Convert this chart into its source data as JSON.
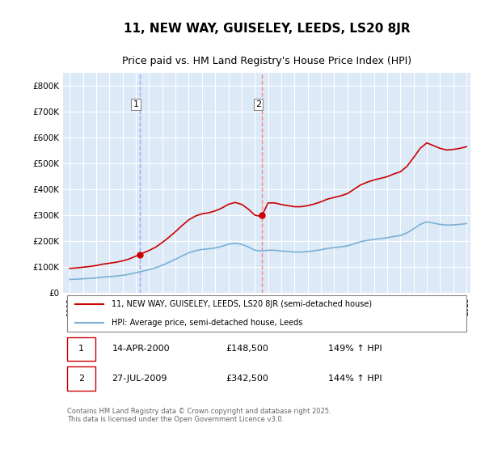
{
  "title": "11, NEW WAY, GUISELEY, LEEDS, LS20 8JR",
  "subtitle": "Price paid vs. HM Land Registry's House Price Index (HPI)",
  "title_fontsize": 11,
  "subtitle_fontsize": 9,
  "background_color": "#ffffff",
  "plot_bg_color": "#dce9f7",
  "ylabel": "",
  "ylim": [
    0,
    850000
  ],
  "yticks": [
    0,
    100000,
    200000,
    300000,
    400000,
    500000,
    600000,
    700000,
    800000
  ],
  "ytick_labels": [
    "£0",
    "£100K",
    "£200K",
    "£300K",
    "£400K",
    "£500K",
    "£600K",
    "£700K",
    "£800K"
  ],
  "grid_color": "#ffffff",
  "marker1_date_idx": 5,
  "marker1_label": "1",
  "marker1_date": "14-APR-2000",
  "marker1_price": 148500,
  "marker1_pct": "149% ↑ HPI",
  "marker2_label": "2",
  "marker2_date": "27-JUL-2009",
  "marker2_price": 342500,
  "marker2_pct": "144% ↑ HPI",
  "legend_line1": "11, NEW WAY, GUISELEY, LEEDS, LS20 8JR (semi-detached house)",
  "legend_line2": "HPI: Average price, semi-detached house, Leeds",
  "footer": "Contains HM Land Registry data © Crown copyright and database right 2025.\nThis data is licensed under the Open Government Licence v3.0.",
  "vline_color_1": "#a0a0ff",
  "vline_color_2": "#ff8080",
  "sale_line_color": "#cc0000",
  "hpi_line_color": "#7ab0d4",
  "dot_color": "#cc0000",
  "x_start_year": 1995,
  "x_end_year": 2025
}
